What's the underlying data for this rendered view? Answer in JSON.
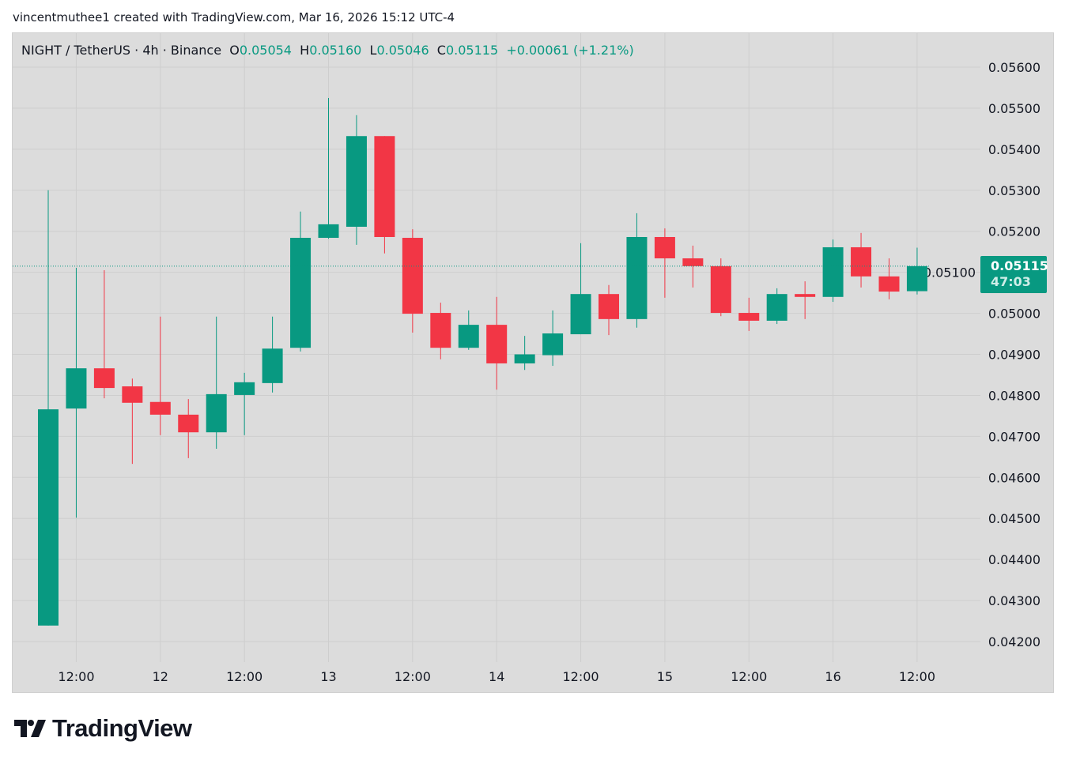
{
  "credit": "vincentmuthee1 created with TradingView.com, Mar 16, 2026 15:12 UTC-4",
  "legend": {
    "symbol": "NIGHT / TetherUS · 4h · Binance",
    "o_label": "O",
    "o": "0.05054",
    "h_label": "H",
    "h": "0.05160",
    "l_label": "L",
    "l": "0.05046",
    "c_label": "C",
    "c": "0.05115",
    "change": "+0.00061 (+1.21%)"
  },
  "last_price": {
    "price": "0.05115",
    "countdown": "47:03"
  },
  "logo": "TradingView",
  "colors": {
    "up": "#089981",
    "down": "#f23645",
    "background": "#dcdcdc",
    "grid": "#cecece"
  },
  "chart_data": {
    "type": "candlestick",
    "title": "NIGHT / TetherUS · 4h · Binance",
    "ylim": [
      0.0415,
      0.0565
    ],
    "y_ticks": [
      "0.05600",
      "0.05500",
      "0.05400",
      "0.05300",
      "0.05200",
      "0.05100",
      "0.05000",
      "0.04900",
      "0.04800",
      "0.04700",
      "0.04600",
      "0.04500",
      "0.04400",
      "0.04300",
      "0.04200"
    ],
    "x_ticks": [
      {
        "index": 1,
        "label": "12:00"
      },
      {
        "index": 4,
        "label": "12"
      },
      {
        "index": 7,
        "label": "12:00"
      },
      {
        "index": 10,
        "label": "13"
      },
      {
        "index": 13,
        "label": "12:00"
      },
      {
        "index": 16,
        "label": "14"
      },
      {
        "index": 19,
        "label": "12:00"
      },
      {
        "index": 22,
        "label": "15"
      },
      {
        "index": 25,
        "label": "12:00"
      },
      {
        "index": 28,
        "label": "16"
      },
      {
        "index": 31,
        "label": "12:00"
      }
    ],
    "candles": [
      [
        0.04239,
        0.053,
        0.04239,
        0.04766
      ],
      [
        0.04768,
        0.05111,
        0.04502,
        0.04866
      ],
      [
        0.04866,
        0.05105,
        0.04793,
        0.04818
      ],
      [
        0.04822,
        0.04841,
        0.04633,
        0.04782
      ],
      [
        0.04784,
        0.04992,
        0.04703,
        0.04753
      ],
      [
        0.04753,
        0.04791,
        0.04647,
        0.0471
      ],
      [
        0.0471,
        0.04992,
        0.0467,
        0.04803
      ],
      [
        0.04801,
        0.04855,
        0.04703,
        0.04832
      ],
      [
        0.0483,
        0.04992,
        0.04807,
        0.04914
      ],
      [
        0.04916,
        0.05248,
        0.04907,
        0.05184
      ],
      [
        0.05184,
        0.05525,
        0.05182,
        0.05217
      ],
      [
        0.05211,
        0.05483,
        0.05167,
        0.05432
      ],
      [
        0.05432,
        0.05432,
        0.05146,
        0.05186
      ],
      [
        0.05184,
        0.05205,
        0.04953,
        0.04999
      ],
      [
        0.05001,
        0.05026,
        0.04888,
        0.04916
      ],
      [
        0.04916,
        0.05007,
        0.04911,
        0.04972
      ],
      [
        0.04972,
        0.0504,
        0.04814,
        0.04878
      ],
      [
        0.04878,
        0.04945,
        0.04862,
        0.049
      ],
      [
        0.04898,
        0.05007,
        0.04872,
        0.04951
      ],
      [
        0.04949,
        0.05171,
        0.04949,
        0.05047
      ],
      [
        0.05047,
        0.05069,
        0.04947,
        0.04986
      ],
      [
        0.04986,
        0.05244,
        0.04965,
        0.05186
      ],
      [
        0.05186,
        0.05207,
        0.05038,
        0.05134
      ],
      [
        0.05134,
        0.05165,
        0.05063,
        0.05115
      ],
      [
        0.05115,
        0.05134,
        0.04993,
        0.05001
      ],
      [
        0.05001,
        0.05038,
        0.04957,
        0.04982
      ],
      [
        0.04982,
        0.05061,
        0.04974,
        0.05047
      ],
      [
        0.05047,
        0.05078,
        0.04986,
        0.0504
      ],
      [
        0.0504,
        0.0518,
        0.05028,
        0.05161
      ],
      [
        0.05161,
        0.05196,
        0.05063,
        0.0509
      ],
      [
        0.0509,
        0.05134,
        0.05034,
        0.05053
      ],
      [
        0.05054,
        0.0516,
        0.05046,
        0.05115
      ]
    ],
    "candle_format": [
      "open",
      "high",
      "low",
      "close"
    ],
    "last_price": 0.05115
  }
}
